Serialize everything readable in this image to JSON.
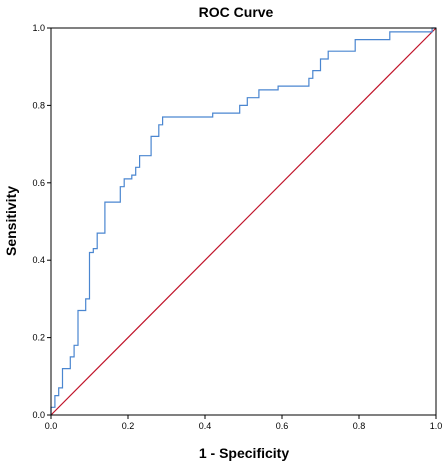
{
  "chart_data": {
    "type": "line",
    "title": "ROC Curve",
    "xlabel": "1 - Specificity",
    "ylabel": "Sensitivity",
    "xlim": [
      0,
      1
    ],
    "ylim": [
      0,
      1
    ],
    "xticks": [
      "0.0",
      "0.2",
      "0.4",
      "0.6",
      "0.8",
      "1.0"
    ],
    "yticks": [
      "0.0",
      "0.2",
      "0.4",
      "0.6",
      "0.8",
      "1.0"
    ],
    "grid": false,
    "series": [
      {
        "color": "#4a86d0",
        "step": true,
        "points": [
          [
            0.0,
            0.0
          ],
          [
            0.0,
            0.02
          ],
          [
            0.01,
            0.02
          ],
          [
            0.01,
            0.05
          ],
          [
            0.02,
            0.05
          ],
          [
            0.02,
            0.07
          ],
          [
            0.03,
            0.07
          ],
          [
            0.03,
            0.12
          ],
          [
            0.05,
            0.12
          ],
          [
            0.05,
            0.15
          ],
          [
            0.06,
            0.15
          ],
          [
            0.06,
            0.18
          ],
          [
            0.07,
            0.18
          ],
          [
            0.07,
            0.27
          ],
          [
            0.09,
            0.27
          ],
          [
            0.09,
            0.3
          ],
          [
            0.1,
            0.3
          ],
          [
            0.1,
            0.42
          ],
          [
            0.11,
            0.42
          ],
          [
            0.11,
            0.43
          ],
          [
            0.12,
            0.43
          ],
          [
            0.12,
            0.47
          ],
          [
            0.14,
            0.47
          ],
          [
            0.14,
            0.55
          ],
          [
            0.18,
            0.55
          ],
          [
            0.18,
            0.59
          ],
          [
            0.19,
            0.59
          ],
          [
            0.19,
            0.61
          ],
          [
            0.21,
            0.61
          ],
          [
            0.21,
            0.62
          ],
          [
            0.22,
            0.62
          ],
          [
            0.22,
            0.64
          ],
          [
            0.23,
            0.64
          ],
          [
            0.23,
            0.67
          ],
          [
            0.26,
            0.67
          ],
          [
            0.26,
            0.72
          ],
          [
            0.28,
            0.72
          ],
          [
            0.28,
            0.75
          ],
          [
            0.29,
            0.75
          ],
          [
            0.29,
            0.77
          ],
          [
            0.42,
            0.77
          ],
          [
            0.42,
            0.78
          ],
          [
            0.49,
            0.78
          ],
          [
            0.49,
            0.8
          ],
          [
            0.51,
            0.8
          ],
          [
            0.51,
            0.82
          ],
          [
            0.54,
            0.82
          ],
          [
            0.54,
            0.84
          ],
          [
            0.59,
            0.84
          ],
          [
            0.59,
            0.85
          ],
          [
            0.67,
            0.85
          ],
          [
            0.67,
            0.87
          ],
          [
            0.68,
            0.87
          ],
          [
            0.68,
            0.89
          ],
          [
            0.7,
            0.89
          ],
          [
            0.7,
            0.92
          ],
          [
            0.72,
            0.92
          ],
          [
            0.72,
            0.94
          ],
          [
            0.79,
            0.94
          ],
          [
            0.79,
            0.97
          ],
          [
            0.88,
            0.97
          ],
          [
            0.88,
            0.99
          ],
          [
            0.99,
            0.99
          ],
          [
            0.99,
            1.0
          ],
          [
            1.0,
            1.0
          ]
        ]
      },
      {
        "color": "#c0142a",
        "step": false,
        "points": [
          [
            0.0,
            0.0
          ],
          [
            1.0,
            1.0
          ]
        ]
      }
    ]
  }
}
